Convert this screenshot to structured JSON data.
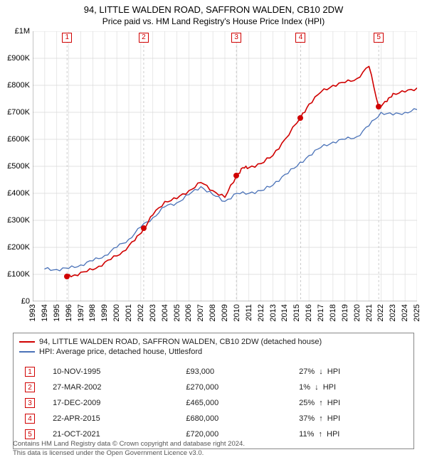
{
  "title_main": "94, LITTLE WALDEN ROAD, SAFFRON WALDEN, CB10 2DW",
  "title_sub": "Price paid vs. HM Land Registry's House Price Index (HPI)",
  "colors": {
    "price_line": "#d00000",
    "hpi_line": "#4a72b8",
    "grid": "#d8d8d8",
    "marker_dash": "#cccccc",
    "bg": "#ffffff",
    "text": "#000000"
  },
  "chart": {
    "type": "line",
    "ylim": [
      0,
      1000000
    ],
    "ytick_step": 100000,
    "ytick_labels": [
      "£0",
      "£100K",
      "£200K",
      "£300K",
      "£400K",
      "£500K",
      "£600K",
      "£700K",
      "£800K",
      "£900K",
      "£1M"
    ],
    "x_years": [
      1993,
      1994,
      1995,
      1996,
      1997,
      1998,
      1999,
      2000,
      2001,
      2002,
      2003,
      2004,
      2005,
      2006,
      2007,
      2008,
      2009,
      2010,
      2011,
      2012,
      2013,
      2014,
      2015,
      2016,
      2017,
      2018,
      2019,
      2020,
      2021,
      2022,
      2023,
      2024,
      2025
    ],
    "line_width_price": 1.6,
    "line_width_hpi": 1.3,
    "hpi_series": [
      [
        1994,
        120000
      ],
      [
        1995,
        118000
      ],
      [
        1996,
        122000
      ],
      [
        1997,
        135000
      ],
      [
        1998,
        150000
      ],
      [
        1999,
        170000
      ],
      [
        2000,
        200000
      ],
      [
        2001,
        230000
      ],
      [
        2002,
        275000
      ],
      [
        2003,
        310000
      ],
      [
        2004,
        350000
      ],
      [
        2005,
        365000
      ],
      [
        2006,
        395000
      ],
      [
        2007,
        425000
      ],
      [
        2008,
        395000
      ],
      [
        2009,
        370000
      ],
      [
        2010,
        400000
      ],
      [
        2011,
        400000
      ],
      [
        2012,
        410000
      ],
      [
        2013,
        430000
      ],
      [
        2014,
        470000
      ],
      [
        2015,
        500000
      ],
      [
        2016,
        540000
      ],
      [
        2017,
        570000
      ],
      [
        2018,
        590000
      ],
      [
        2019,
        600000
      ],
      [
        2020,
        610000
      ],
      [
        2021,
        650000
      ],
      [
        2022,
        700000
      ],
      [
        2023,
        690000
      ],
      [
        2024,
        700000
      ],
      [
        2025,
        710000
      ]
    ],
    "price_series": [
      [
        1995.86,
        93000
      ],
      [
        1996.5,
        98000
      ],
      [
        1997.5,
        110000
      ],
      [
        1998.5,
        130000
      ],
      [
        1999.5,
        155000
      ],
      [
        2000.5,
        185000
      ],
      [
        2001.5,
        225000
      ],
      [
        2002.24,
        270000
      ],
      [
        2003,
        320000
      ],
      [
        2004,
        370000
      ],
      [
        2005,
        380000
      ],
      [
        2006,
        410000
      ],
      [
        2007,
        440000
      ],
      [
        2008,
        410000
      ],
      [
        2009,
        385000
      ],
      [
        2009.96,
        465000
      ],
      [
        2010.5,
        495000
      ],
      [
        2011,
        495000
      ],
      [
        2012,
        510000
      ],
      [
        2013,
        540000
      ],
      [
        2014,
        600000
      ],
      [
        2015.31,
        680000
      ],
      [
        2016,
        730000
      ],
      [
        2017,
        775000
      ],
      [
        2018,
        800000
      ],
      [
        2019,
        810000
      ],
      [
        2020,
        825000
      ],
      [
        2021,
        870000
      ],
      [
        2021.81,
        720000
      ],
      [
        2022.5,
        740000
      ],
      [
        2023,
        770000
      ],
      [
        2024,
        775000
      ],
      [
        2025,
        790000
      ]
    ],
    "sale_markers": [
      {
        "idx": "1",
        "year": 1995.86,
        "value": 93000
      },
      {
        "idx": "2",
        "year": 2002.24,
        "value": 270000
      },
      {
        "idx": "3",
        "year": 2009.96,
        "value": 465000
      },
      {
        "idx": "4",
        "year": 2015.31,
        "value": 680000
      },
      {
        "idx": "5",
        "year": 2021.81,
        "value": 720000
      }
    ]
  },
  "legend": {
    "series_a": "94, LITTLE WALDEN ROAD, SAFFRON WALDEN, CB10 2DW (detached house)",
    "series_b": "HPI: Average price, detached house, Uttlesford"
  },
  "sales": [
    {
      "idx": "1",
      "date": "10-NOV-1995",
      "price": "£93,000",
      "diff": "27%",
      "dir": "down",
      "vs": "HPI"
    },
    {
      "idx": "2",
      "date": "27-MAR-2002",
      "price": "£270,000",
      "diff": "1%",
      "dir": "down",
      "vs": "HPI"
    },
    {
      "idx": "3",
      "date": "17-DEC-2009",
      "price": "£465,000",
      "diff": "25%",
      "dir": "up",
      "vs": "HPI"
    },
    {
      "idx": "4",
      "date": "22-APR-2015",
      "price": "£680,000",
      "diff": "37%",
      "dir": "up",
      "vs": "HPI"
    },
    {
      "idx": "5",
      "date": "21-OCT-2021",
      "price": "£720,000",
      "diff": "11%",
      "dir": "up",
      "vs": "HPI"
    }
  ],
  "footer_line1": "Contains HM Land Registry data © Crown copyright and database right 2024.",
  "footer_line2": "This data is licensed under the Open Government Licence v3.0."
}
